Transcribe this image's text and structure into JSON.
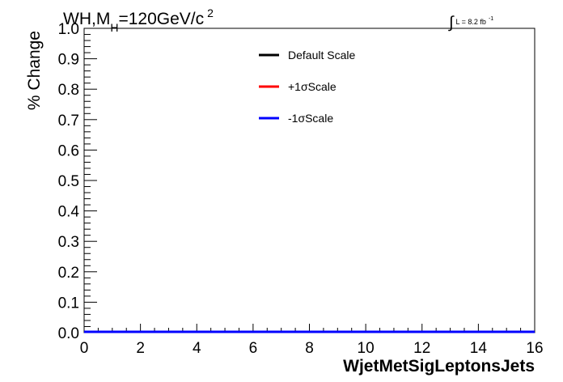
{
  "chart_data": {
    "type": "line",
    "title": {
      "main": "WH,M",
      "sub": "H",
      "rest": "=120GeV/c",
      "sup": "2"
    },
    "luminosity": {
      "symbol": "∫",
      "text": "L = 8.2 fb",
      "sup": "-1"
    },
    "xlabel": "WjetMetSigLeptonsJets",
    "ylabel": "% Change",
    "xlim": [
      0,
      16
    ],
    "ylim": [
      0,
      1.0
    ],
    "x_ticks": [
      "0",
      "2",
      "4",
      "6",
      "8",
      "10",
      "12",
      "14",
      "16"
    ],
    "y_ticks": [
      "0.0",
      "0.1",
      "0.2",
      "0.3",
      "0.4",
      "0.5",
      "0.6",
      "0.7",
      "0.8",
      "0.9",
      "1.0"
    ],
    "grid": false,
    "legend_position": "top-center",
    "series": [
      {
        "name": "Default Scale",
        "color": "#000000",
        "x": [
          0,
          16
        ],
        "y": [
          0,
          0
        ]
      },
      {
        "name": "+1σScale",
        "color": "#ff0000",
        "x": [
          0,
          16
        ],
        "y": [
          0,
          0
        ]
      },
      {
        "name": "-1σScale",
        "color": "#0000ff",
        "x": [
          0,
          16
        ],
        "y": [
          0,
          0
        ]
      }
    ]
  }
}
